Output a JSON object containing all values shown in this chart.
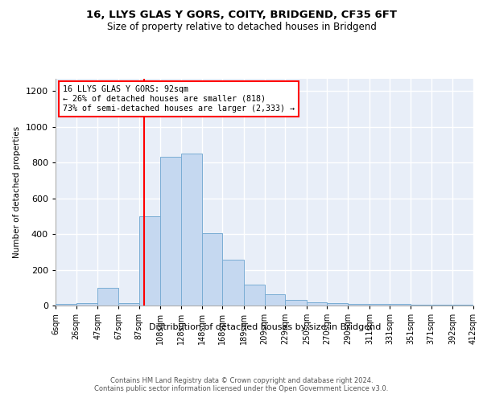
{
  "title": "16, LLYS GLAS Y GORS, COITY, BRIDGEND, CF35 6FT",
  "subtitle": "Size of property relative to detached houses in Bridgend",
  "xlabel": "Distribution of detached houses by size in Bridgend",
  "ylabel": "Number of detached properties",
  "bin_edges": [
    6,
    26,
    47,
    67,
    87,
    108,
    128,
    148,
    168,
    189,
    209,
    229,
    250,
    270,
    290,
    311,
    331,
    351,
    371,
    392,
    412
  ],
  "bar_heights": [
    10,
    14,
    100,
    14,
    500,
    830,
    850,
    405,
    255,
    115,
    65,
    32,
    20,
    15,
    10,
    10,
    8,
    5,
    5,
    3
  ],
  "bar_color": "#c5d8f0",
  "bar_edgecolor": "#7aadd4",
  "vline_x": 92,
  "vline_color": "red",
  "annotation_text": "16 LLYS GLAS Y GORS: 92sqm\n← 26% of detached houses are smaller (818)\n73% of semi-detached houses are larger (2,333) →",
  "annotation_box_color": "white",
  "annotation_box_edgecolor": "red",
  "ylim": [
    0,
    1270
  ],
  "yticks": [
    0,
    200,
    400,
    600,
    800,
    1000,
    1200
  ],
  "bg_color": "#ffffff",
  "plot_bg_color": "#e8eef8",
  "footer1": "Contains HM Land Registry data © Crown copyright and database right 2024.",
  "footer2": "Contains public sector information licensed under the Open Government Licence v3.0."
}
